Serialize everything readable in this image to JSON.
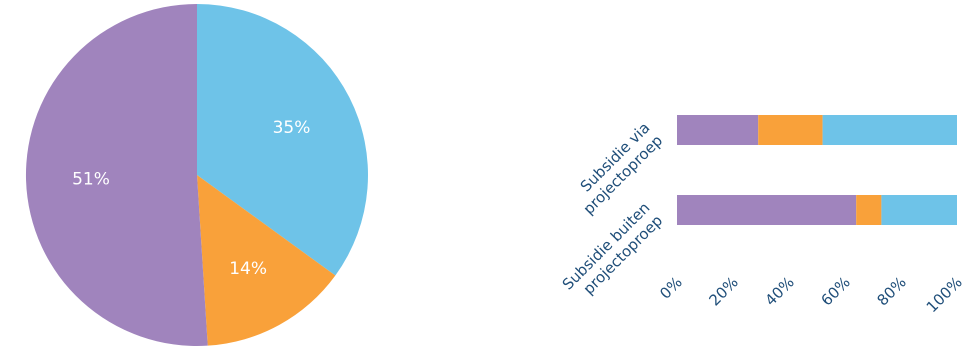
{
  "chart_data": [
    {
      "type": "pie",
      "categories": [
        "",
        "",
        ""
      ],
      "values": [
        35,
        14,
        51
      ],
      "data_labels": [
        "35%",
        "14%",
        "51%"
      ],
      "colors": [
        "#6ec3e8",
        "#f9a13a",
        "#a084bd"
      ],
      "start": "12 o'clock, clockwise",
      "legend": "none"
    },
    {
      "type": "bar",
      "orientation": "horizontal",
      "stacked": "100%",
      "categories": [
        "Subsidie via projectoproep",
        "Subsidie buiten projectoproep"
      ],
      "series": [
        {
          "color": "#a084bd",
          "values": [
            29,
            64
          ]
        },
        {
          "color": "#f9a13a",
          "values": [
            23,
            9
          ]
        },
        {
          "color": "#6ec3e8",
          "values": [
            48,
            27
          ]
        }
      ],
      "xlim": [
        0,
        100
      ],
      "xticks": [
        "0%",
        "20%",
        "40%",
        "60%",
        "80%",
        "100%"
      ],
      "grid": false,
      "legend": "none"
    }
  ]
}
